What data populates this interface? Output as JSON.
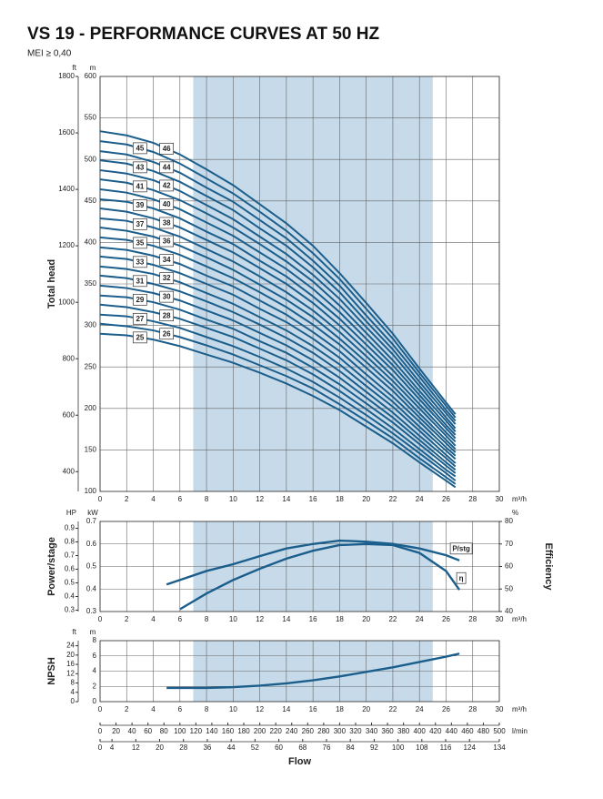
{
  "title": "VS 19 - PERFORMANCE CURVES AT 50 HZ",
  "subtitle": "MEI ≥ 0,40",
  "chart_data": [
    {
      "type": "line",
      "y_label": "Total head",
      "y_unit": "m",
      "x_unit": "m³/h",
      "grid": true,
      "color": "#1b5e8c",
      "highlight_range": [
        7,
        25
      ],
      "xlim": [
        0,
        30
      ],
      "xticks": [
        0,
        2,
        4,
        6,
        8,
        10,
        12,
        14,
        16,
        18,
        20,
        22,
        24,
        26,
        28,
        30
      ],
      "ylim": [
        100,
        600
      ],
      "yticks": [
        100,
        150,
        200,
        250,
        300,
        350,
        400,
        450,
        500,
        550,
        600
      ],
      "secondary_axis": {
        "unit": "ft",
        "lim": [
          330,
          1800
        ],
        "ticks": [
          400,
          600,
          800,
          1000,
          1200,
          1400,
          1600,
          1800
        ]
      },
      "x": [
        0,
        2,
        4,
        6,
        8,
        10,
        12,
        14,
        16,
        18,
        20,
        22,
        24,
        26,
        26.7
      ],
      "series": [
        {
          "name": "25",
          "values": [
            290,
            288,
            283,
            275,
            265,
            255,
            243,
            230,
            215,
            198,
            178,
            158,
            135,
            113,
            105
          ]
        },
        {
          "name": "26",
          "values": [
            302,
            299,
            294,
            286,
            276,
            265,
            252,
            239,
            224,
            205,
            185,
            164,
            140,
            117,
            109
          ]
        },
        {
          "name": "27",
          "values": [
            313,
            311,
            305,
            297,
            286,
            275,
            262,
            248,
            232,
            213,
            192,
            170,
            146,
            122,
            113
          ]
        },
        {
          "name": "28",
          "values": [
            325,
            322,
            316,
            308,
            297,
            286,
            272,
            258,
            241,
            221,
            199,
            176,
            151,
            126,
            118
          ]
        },
        {
          "name": "29",
          "values": [
            336,
            334,
            328,
            319,
            307,
            296,
            281,
            267,
            249,
            229,
            206,
            183,
            157,
            131,
            122
          ]
        },
        {
          "name": "30",
          "values": [
            348,
            345,
            339,
            330,
            318,
            306,
            291,
            276,
            258,
            237,
            213,
            189,
            162,
            135,
            126
          ]
        },
        {
          "name": "31",
          "values": [
            360,
            357,
            350,
            341,
            329,
            316,
            301,
            285,
            267,
            245,
            220,
            195,
            167,
            140,
            130
          ]
        },
        {
          "name": "32",
          "values": [
            371,
            368,
            362,
            352,
            339,
            326,
            310,
            294,
            275,
            253,
            227,
            202,
            173,
            144,
            134
          ]
        },
        {
          "name": "33",
          "values": [
            383,
            380,
            373,
            363,
            350,
            337,
            320,
            304,
            284,
            261,
            234,
            208,
            178,
            149,
            139
          ]
        },
        {
          "name": "34",
          "values": [
            394,
            391,
            384,
            374,
            360,
            347,
            330,
            313,
            292,
            269,
            241,
            214,
            184,
            153,
            143
          ]
        },
        {
          "name": "35",
          "values": [
            406,
            403,
            396,
            385,
            371,
            357,
            340,
            322,
            301,
            277,
            249,
            221,
            189,
            158,
            147
          ]
        },
        {
          "name": "36",
          "values": [
            418,
            414,
            407,
            396,
            382,
            367,
            349,
            331,
            310,
            284,
            256,
            227,
            194,
            162,
            151
          ]
        },
        {
          "name": "37",
          "values": [
            429,
            426,
            418,
            407,
            392,
            377,
            359,
            340,
            318,
            292,
            263,
            233,
            200,
            167,
            155
          ]
        },
        {
          "name": "38",
          "values": [
            441,
            437,
            429,
            418,
            403,
            388,
            369,
            350,
            327,
            300,
            270,
            239,
            205,
            171,
            160
          ]
        },
        {
          "name": "39",
          "values": [
            452,
            449,
            441,
            429,
            413,
            398,
            378,
            359,
            335,
            308,
            277,
            246,
            211,
            176,
            164
          ]
        },
        {
          "name": "40",
          "values": [
            464,
            460,
            452,
            440,
            424,
            408,
            388,
            368,
            344,
            316,
            284,
            252,
            216,
            180,
            168
          ]
        },
        {
          "name": "41",
          "values": [
            476,
            472,
            463,
            451,
            435,
            418,
            398,
            377,
            353,
            324,
            291,
            258,
            221,
            185,
            172
          ]
        },
        {
          "name": "42",
          "values": [
            487,
            483,
            475,
            462,
            445,
            428,
            407,
            386,
            361,
            332,
            298,
            265,
            227,
            189,
            176
          ]
        },
        {
          "name": "43",
          "values": [
            499,
            495,
            486,
            473,
            456,
            439,
            417,
            396,
            370,
            340,
            305,
            271,
            232,
            194,
            181
          ]
        },
        {
          "name": "44",
          "values": [
            510,
            506,
            497,
            484,
            466,
            449,
            427,
            405,
            378,
            348,
            312,
            277,
            238,
            198,
            185
          ]
        },
        {
          "name": "45",
          "values": [
            522,
            518,
            509,
            495,
            477,
            459,
            437,
            414,
            387,
            356,
            320,
            284,
            243,
            203,
            189
          ]
        },
        {
          "name": "46",
          "values": [
            534,
            529,
            520,
            506,
            488,
            469,
            446,
            423,
            396,
            363,
            327,
            290,
            248,
            207,
            193
          ]
        }
      ]
    },
    {
      "type": "line",
      "y_label": "Power/stage",
      "y_unit": "kW",
      "y2_label": "Efficiency",
      "y2_unit": "%",
      "x_unit": "m³/h",
      "grid": true,
      "color": "#1b5e8c",
      "highlight_range": [
        7,
        25
      ],
      "xlim": [
        0,
        30
      ],
      "xticks": [
        0,
        2,
        4,
        6,
        8,
        10,
        12,
        14,
        16,
        18,
        20,
        22,
        24,
        26,
        28,
        30
      ],
      "ylim": [
        0.3,
        0.7
      ],
      "yticks": [
        0.3,
        0.4,
        0.5,
        0.6,
        0.7
      ],
      "y2lim": [
        40,
        80
      ],
      "y2ticks": [
        40,
        50,
        60,
        70,
        80
      ],
      "secondary_axis": {
        "unit": "HP",
        "lim": [
          0.29,
          0.95
        ],
        "ticks": [
          0.3,
          0.4,
          0.5,
          0.6,
          0.7,
          0.8,
          0.9
        ]
      },
      "series": [
        {
          "name": "P/stg",
          "x": [
            5,
            8,
            10,
            12,
            14,
            16,
            18,
            20,
            22,
            24,
            26,
            27
          ],
          "values": [
            0.42,
            0.48,
            0.51,
            0.546,
            0.58,
            0.6,
            0.615,
            0.61,
            0.6,
            0.58,
            0.55,
            0.527
          ]
        },
        {
          "name": "η",
          "axis": "y2",
          "x": [
            6,
            8,
            10,
            12,
            14,
            16,
            18,
            20,
            22,
            24,
            26,
            27
          ],
          "values": [
            41,
            48,
            54,
            59,
            63.5,
            67,
            69.5,
            70,
            69.5,
            66,
            58,
            49.6
          ]
        }
      ]
    },
    {
      "type": "line",
      "y_label": "NPSH",
      "y_unit": "m",
      "x_unit": "m³/h",
      "x_label": "Flow",
      "grid": true,
      "color": "#1b5e8c",
      "highlight_range": [
        7,
        25
      ],
      "xlim": [
        0,
        30
      ],
      "xticks": [
        0,
        2,
        4,
        6,
        8,
        10,
        12,
        14,
        16,
        18,
        20,
        22,
        24,
        26,
        28,
        30
      ],
      "ylim": [
        0,
        8
      ],
      "yticks": [
        0,
        2,
        4,
        6,
        8
      ],
      "secondary_axis": {
        "unit": "ft",
        "lim": [
          0,
          26.2
        ],
        "ticks": [
          0,
          4,
          8,
          12,
          16,
          20,
          24
        ]
      },
      "series": [
        {
          "x": [
            5,
            8,
            10,
            12,
            14,
            16,
            18,
            20,
            22,
            24,
            26,
            27
          ],
          "values": [
            1.8,
            1.8,
            1.9,
            2.1,
            2.4,
            2.8,
            3.3,
            3.9,
            4.5,
            5.2,
            5.9,
            6.3
          ]
        }
      ],
      "flow_axes": [
        {
          "unit": "l/min",
          "lim": [
            0,
            500
          ],
          "ticks": [
            0,
            20,
            40,
            60,
            80,
            100,
            120,
            140,
            160,
            180,
            200,
            220,
            240,
            260,
            280,
            300,
            320,
            340,
            360,
            380,
            400,
            420,
            440,
            460,
            480,
            500
          ]
        },
        {
          "lim": [
            0,
            134
          ],
          "ticks": [
            0,
            4,
            12,
            20,
            28,
            36,
            44,
            52,
            60,
            68,
            76,
            84,
            92,
            100,
            108,
            116,
            124,
            134
          ]
        }
      ]
    }
  ]
}
